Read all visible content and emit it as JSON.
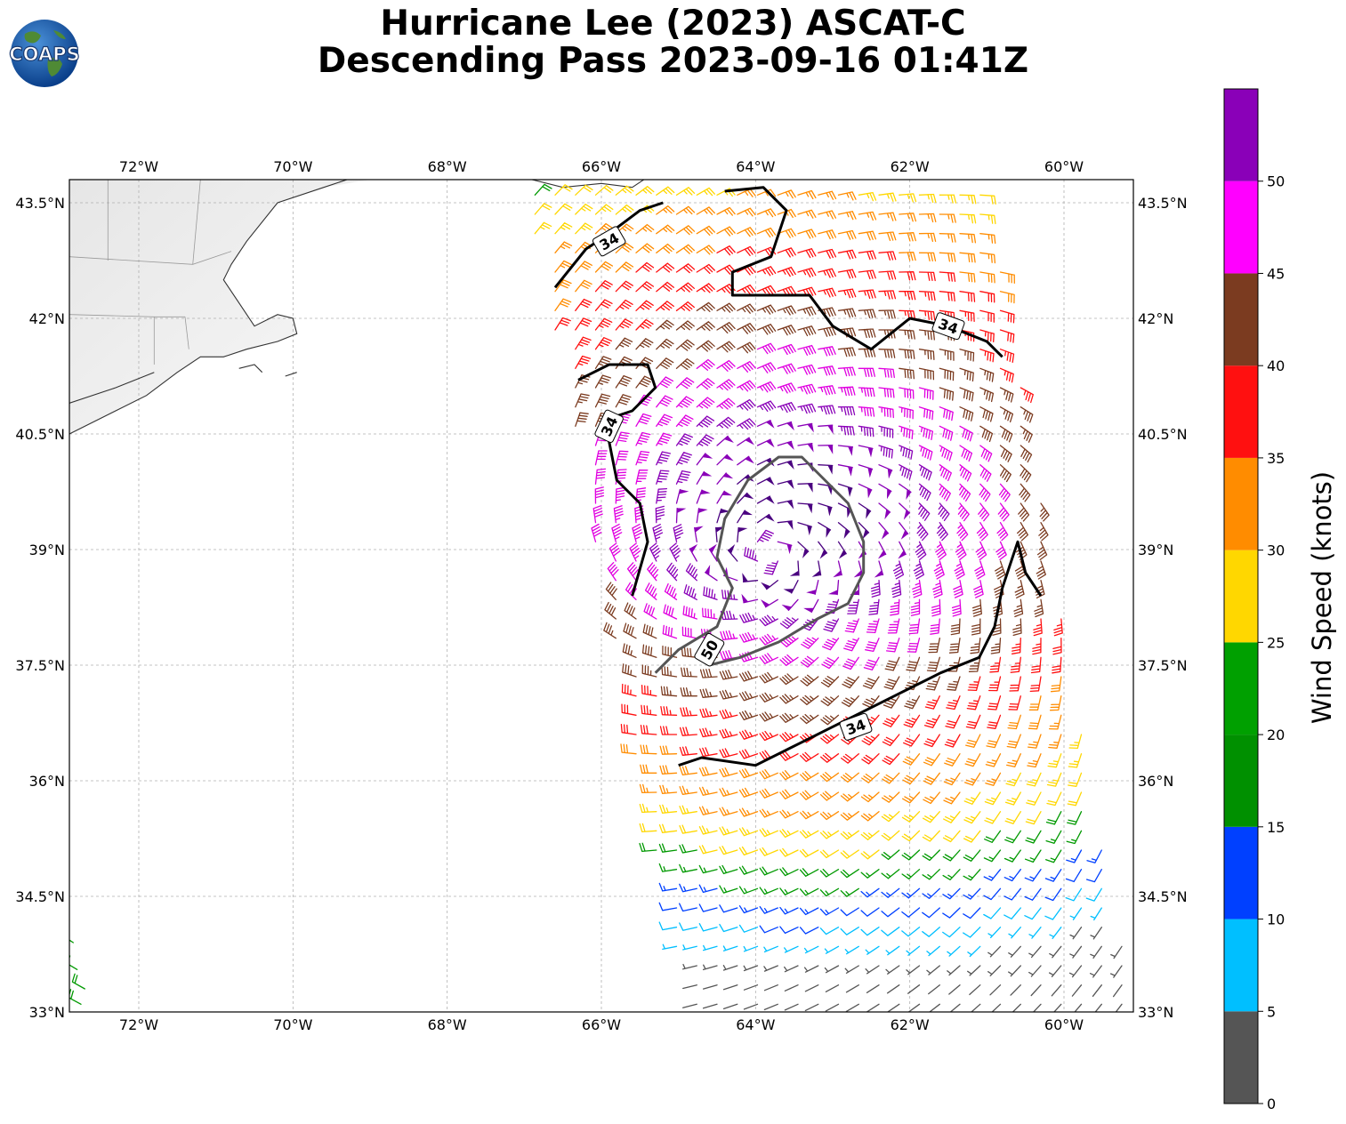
{
  "title": {
    "line1": "Hurricane Lee (2023) ASCAT-C",
    "line2": "Descending Pass 2023-09-16 01:41Z"
  },
  "logo": {
    "text": "COAPS",
    "icon": "globe-logo"
  },
  "map": {
    "lon_range": [
      -72.9,
      -59.1
    ],
    "lat_range": [
      33.0,
      43.8
    ],
    "lon_ticks": [
      -72,
      -70,
      -68,
      -66,
      -64,
      -62,
      -60
    ],
    "lon_tick_labels": [
      "72°W",
      "70°W",
      "68°W",
      "66°W",
      "64°W",
      "62°W",
      "60°W"
    ],
    "lat_ticks": [
      33,
      34.5,
      36,
      37.5,
      39,
      40.5,
      42,
      43.5
    ],
    "lat_tick_labels": [
      "33°N",
      "34.5°N",
      "36°N",
      "37.5°N",
      "39°N",
      "40.5°N",
      "42°N",
      "43.5°N"
    ],
    "gridlines": true,
    "storm_center": {
      "lon": -63.85,
      "lat": 38.95
    },
    "swath": {
      "east_edge_top_lon": -61.0,
      "east_edge_bottom_lon": -59.1,
      "west_edge_top_lon": -67.0,
      "west_edge_bottom_lon": -64.9
    },
    "contour_34_label": "34",
    "contour_50_label": "50",
    "contour_34_paths": [
      [
        [
          -66.6,
          42.4
        ],
        [
          -66.2,
          42.9
        ],
        [
          -65.9,
          43.1
        ],
        [
          -65.5,
          43.4
        ],
        [
          -65.2,
          43.5
        ]
      ],
      [
        [
          -64.4,
          43.65
        ],
        [
          -63.9,
          43.7
        ],
        [
          -63.6,
          43.4
        ],
        [
          -63.8,
          42.8
        ],
        [
          -64.3,
          42.6
        ],
        [
          -64.3,
          42.3
        ],
        [
          -63.7,
          42.3
        ],
        [
          -63.3,
          42.3
        ],
        [
          -63.0,
          41.9
        ],
        [
          -62.5,
          41.6
        ],
        [
          -62.0,
          42.0
        ],
        [
          -61.5,
          41.9
        ],
        [
          -61.0,
          41.7
        ],
        [
          -60.8,
          41.5
        ]
      ],
      [
        [
          -66.3,
          41.2
        ],
        [
          -65.9,
          41.4
        ],
        [
          -65.4,
          41.4
        ],
        [
          -65.3,
          41.1
        ],
        [
          -65.6,
          40.8
        ],
        [
          -65.9,
          40.7
        ],
        [
          -65.9,
          40.4
        ],
        [
          -65.8,
          39.9
        ],
        [
          -65.5,
          39.6
        ],
        [
          -65.4,
          39.1
        ],
        [
          -65.6,
          38.4
        ]
      ],
      [
        [
          -65.0,
          36.2
        ],
        [
          -64.7,
          36.3
        ],
        [
          -64.0,
          36.2
        ],
        [
          -63.4,
          36.5
        ],
        [
          -62.8,
          36.8
        ],
        [
          -62.2,
          37.1
        ],
        [
          -61.6,
          37.4
        ],
        [
          -61.1,
          37.6
        ],
        [
          -60.9,
          38.0
        ],
        [
          -60.8,
          38.5
        ],
        [
          -60.7,
          38.8
        ],
        [
          -60.6,
          39.1
        ],
        [
          -60.5,
          38.7
        ],
        [
          -60.3,
          38.4
        ]
      ]
    ],
    "contour_50_paths": [
      [
        [
          -64.6,
          37.5
        ],
        [
          -64.2,
          37.6
        ],
        [
          -63.7,
          37.8
        ],
        [
          -63.2,
          38.1
        ],
        [
          -62.8,
          38.3
        ],
        [
          -62.6,
          38.7
        ],
        [
          -62.6,
          39.1
        ],
        [
          -62.8,
          39.6
        ],
        [
          -63.1,
          39.9
        ],
        [
          -63.4,
          40.2
        ],
        [
          -63.7,
          40.2
        ],
        [
          -64.1,
          39.9
        ],
        [
          -64.4,
          39.4
        ],
        [
          -64.5,
          38.9
        ],
        [
          -64.3,
          38.5
        ],
        [
          -64.5,
          38.0
        ],
        [
          -65.0,
          37.7
        ],
        [
          -65.3,
          37.4
        ]
      ]
    ],
    "contour_34_label_positions": [
      [
        -65.9,
        43.0
      ],
      [
        -61.5,
        41.9
      ],
      [
        -65.9,
        40.6
      ],
      [
        -62.7,
        36.7
      ]
    ],
    "contour_50_label_position": [
      -64.6,
      37.7
    ],
    "coastline": [
      [
        [
          -72.9,
          40.5
        ],
        [
          -72.3,
          40.8
        ],
        [
          -71.9,
          41.0
        ],
        [
          -71.5,
          41.3
        ],
        [
          -71.2,
          41.5
        ],
        [
          -70.9,
          41.5
        ],
        [
          -70.6,
          41.6
        ],
        [
          -70.2,
          41.7
        ],
        [
          -69.95,
          41.8
        ],
        [
          -70.0,
          42.0
        ],
        [
          -70.2,
          42.05
        ],
        [
          -70.5,
          41.9
        ],
        [
          -70.7,
          42.2
        ],
        [
          -70.9,
          42.5
        ],
        [
          -70.8,
          42.7
        ],
        [
          -70.6,
          43.0
        ],
        [
          -70.2,
          43.5
        ],
        [
          -69.6,
          43.7
        ],
        [
          -69.0,
          43.9
        ]
      ],
      [
        [
          -72.9,
          40.9
        ],
        [
          -72.3,
          41.1
        ],
        [
          -71.8,
          41.3
        ]
      ],
      [
        [
          -70.7,
          41.35
        ],
        [
          -70.5,
          41.4
        ],
        [
          -70.4,
          41.3
        ]
      ],
      [
        [
          -70.1,
          41.25
        ],
        [
          -69.95,
          41.3
        ]
      ],
      [
        [
          -67.3,
          43.9
        ],
        [
          -66.9,
          43.8
        ],
        [
          -66.5,
          43.7
        ],
        [
          -66.0,
          43.75
        ],
        [
          -65.6,
          43.7
        ],
        [
          -65.3,
          43.9
        ]
      ]
    ],
    "land_polygon": [
      [
        -72.9,
        43.8
      ],
      [
        -69.0,
        43.8
      ],
      [
        -69.6,
        43.7
      ],
      [
        -70.2,
        43.5
      ],
      [
        -70.6,
        43.0
      ],
      [
        -70.8,
        42.7
      ],
      [
        -70.9,
        42.5
      ],
      [
        -70.7,
        42.2
      ],
      [
        -70.5,
        41.9
      ],
      [
        -70.2,
        42.05
      ],
      [
        -70.0,
        42.0
      ],
      [
        -69.95,
        41.8
      ],
      [
        -70.2,
        41.7
      ],
      [
        -70.6,
        41.6
      ],
      [
        -70.9,
        41.5
      ],
      [
        -71.2,
        41.5
      ],
      [
        -71.5,
        41.3
      ],
      [
        -71.9,
        41.0
      ],
      [
        -72.3,
        40.8
      ],
      [
        -72.9,
        40.5
      ]
    ],
    "state_borders": [
      [
        [
          -72.9,
          42.05
        ],
        [
          -71.8,
          42.02
        ],
        [
          -71.4,
          42.02
        ]
      ],
      [
        [
          -71.8,
          42.02
        ],
        [
          -71.8,
          41.4
        ]
      ],
      [
        [
          -71.4,
          42.02
        ],
        [
          -71.35,
          41.6
        ]
      ],
      [
        [
          -72.9,
          42.8
        ],
        [
          -71.3,
          42.7
        ],
        [
          -70.8,
          42.87
        ]
      ],
      [
        [
          -71.3,
          42.7
        ],
        [
          -71.2,
          43.8
        ]
      ],
      [
        [
          -72.4,
          42.75
        ],
        [
          -72.4,
          43.8
        ]
      ]
    ]
  },
  "colorbar": {
    "label": "Wind Speed (knots)",
    "bins": [
      0,
      5,
      10,
      15,
      20,
      25,
      30,
      35,
      40,
      45,
      50,
      55
    ],
    "tick_labels": [
      "0",
      "5",
      "10",
      "15",
      "20",
      "25",
      "30",
      "35",
      "40",
      "45",
      "50"
    ],
    "colors": [
      "#555555",
      "#00bfff",
      "#0040ff",
      "#009000",
      "#00a000",
      "#ffd700",
      "#ff8c00",
      "#ff1010",
      "#7b3b20",
      "#ff00ff",
      "#8a00b8",
      "#2a0060"
    ]
  },
  "wind_colors": {
    "0": "#555555",
    "5": "#00bfff",
    "10": "#0040ff",
    "15": "#009900",
    "20": "#ffd700",
    "25": "#ff8c00",
    "30": "#ff1010",
    "35": "#7b3b20",
    "40": "#e000e0",
    "45": "#8a00b8",
    "50": "#4a0080"
  }
}
